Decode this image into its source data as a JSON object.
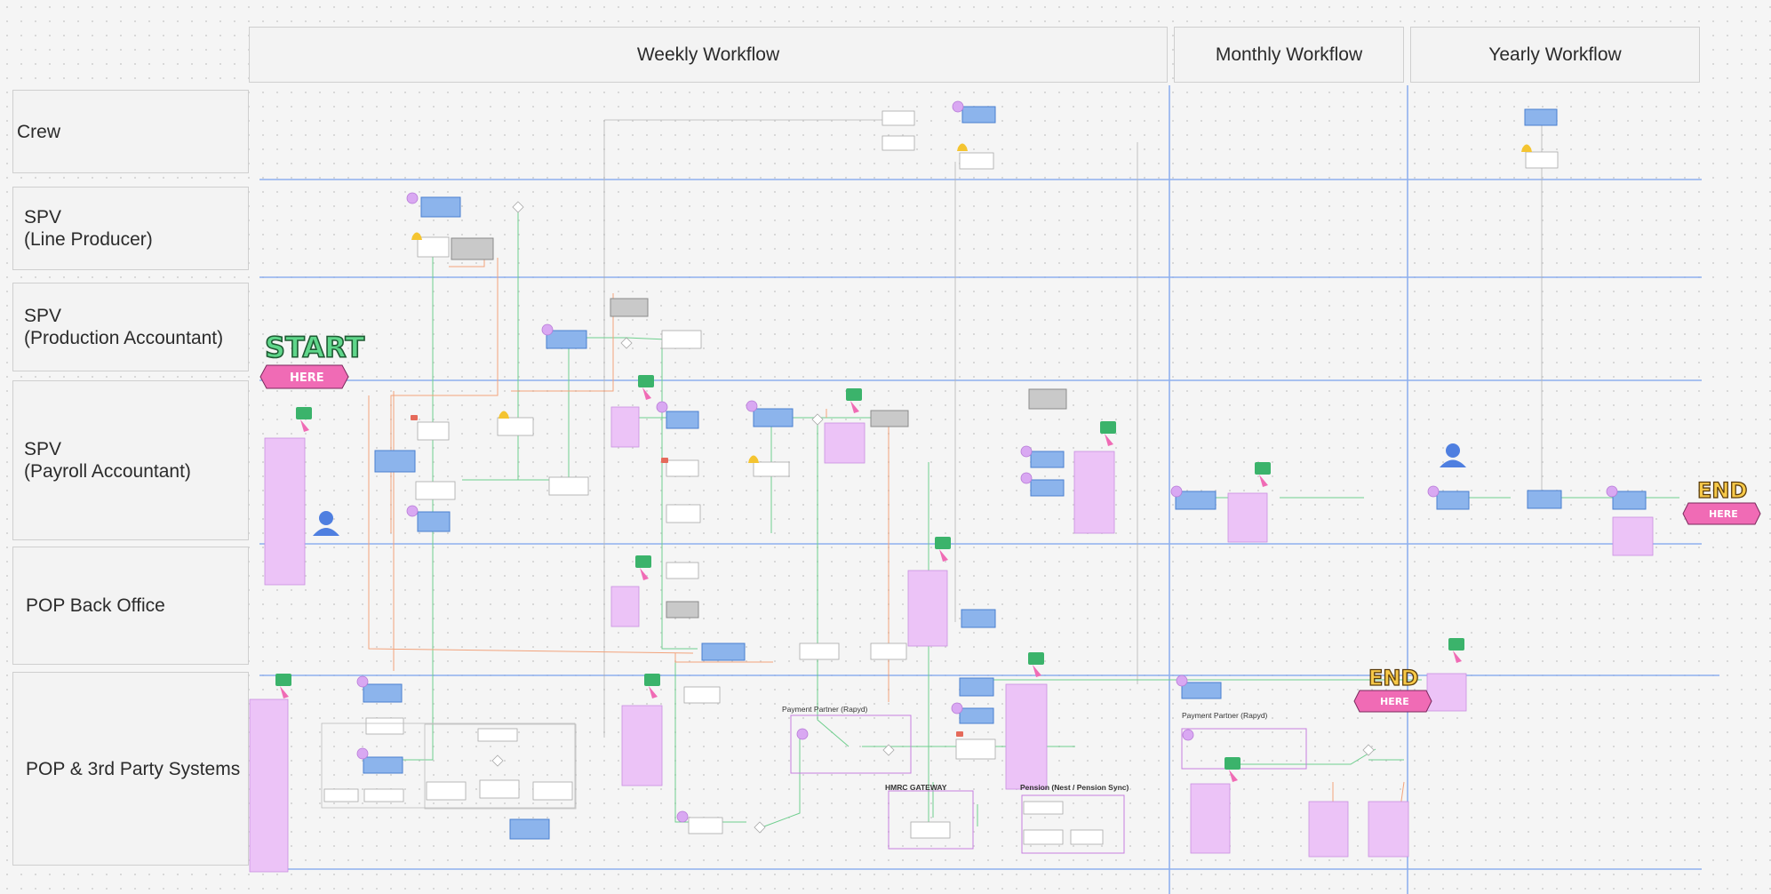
{
  "headers": {
    "weekly": "Weekly Workflow",
    "monthly": "Monthly Workflow",
    "yearly": "Yearly Workflow"
  },
  "lanes": {
    "crew": "Crew",
    "spv_line": "SPV\n(Line Producer)",
    "spv_prod": "SPV\n(Production  Accountant)",
    "spv_payroll": "SPV\n(Payroll Accountant)",
    "pop_back": "POP Back Office",
    "pop_3rd": "POP & 3rd Party Systems"
  },
  "stickers": {
    "start_word": "START",
    "start_here": "HERE",
    "end1_word": "END",
    "end1_here": "HERE",
    "end2_word": "END",
    "end2_here": "HERE"
  },
  "groups": {
    "rapyd_weekly": "Payment Partner (Rapyd)",
    "hmrc": "HMRC GATEWAY",
    "pension": "Pension (Nest / Pension Sync)",
    "rapyd_monthly": "Payment Partner (Rapyd)"
  },
  "colors": {
    "lane_divider": "#8fb0ee",
    "process_box": "#8cb4ec",
    "system_box": "#c9c9c9",
    "note": "#ecc3f7",
    "approve_line": "#6fcf8e",
    "reject_line": "#f2a37c"
  }
}
